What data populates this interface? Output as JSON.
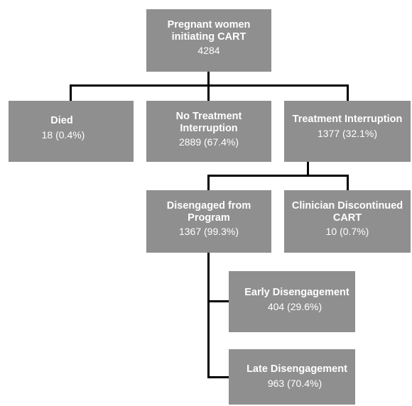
{
  "root": {
    "title_line1": "Pregnant women",
    "title_line2": "initiating CART",
    "value": "4284"
  },
  "died": {
    "title": "Died",
    "value": "18 (0.4%)"
  },
  "no_interruption": {
    "title_line1": "No Treatment",
    "title_line2": "Interruption",
    "value": "2889 (67.4%)"
  },
  "interruption": {
    "title": "Treatment Interruption",
    "value": "1377 (32.1%)"
  },
  "disengaged": {
    "title_line1": "Disengaged from",
    "title_line2": "Program",
    "value": "1367 (99.3%)"
  },
  "clinician": {
    "title_line1": "Clinician Discontinued",
    "title_line2": "CART",
    "value": "10 (0.7%)"
  },
  "early": {
    "title": "Early Disengagement",
    "value": "404 (29.6%)"
  },
  "late": {
    "title": "Late Disengagement",
    "value": "963 (70.4%)"
  }
}
